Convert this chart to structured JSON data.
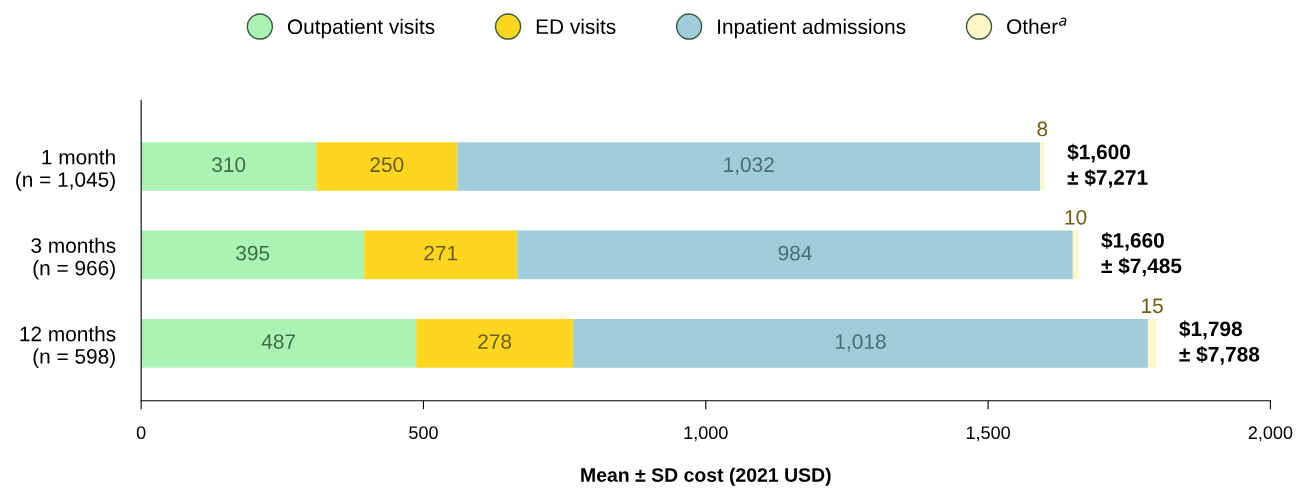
{
  "chart_data": {
    "type": "bar",
    "orientation": "horizontal",
    "stacked": true,
    "categories": [
      "1 month\n(n = 1,045)",
      "3 months\n(n = 966)",
      "12 months\n(n = 598)"
    ],
    "series": [
      {
        "name": "Outpatient visits",
        "color": "#abf2b5",
        "values": [
          310,
          395,
          487
        ],
        "value_labels": [
          "310",
          "395",
          "487"
        ]
      },
      {
        "name": "ED visits",
        "color": "#fdd620",
        "values": [
          250,
          271,
          278
        ],
        "value_labels": [
          "250",
          "271",
          "278"
        ]
      },
      {
        "name": "Inpatient admissions",
        "color": "#a0cdd9",
        "values": [
          1032,
          984,
          1018
        ],
        "value_labels": [
          "1,032",
          "984",
          "1,018"
        ]
      },
      {
        "name": "Other$^{a}$",
        "color": "#fdf6c8",
        "values": [
          8,
          10,
          15
        ],
        "value_labels": [
          "8",
          "10",
          "15"
        ]
      }
    ],
    "totals": [
      "$1,600\n± $7,271",
      "$1,660\n± $7,485",
      "$1,798\n± $7,788"
    ],
    "xlabel": "Mean ± SD cost (2021 USD)",
    "xlim": [
      0,
      2000
    ],
    "xticks": [
      0,
      500,
      {
        "value": 1000,
        "label": "1,000"
      },
      {
        "value": 1500,
        "label": "1,500"
      },
      {
        "value": 2000,
        "label": "2,000"
      }
    ],
    "grid": false,
    "legend": "top"
  }
}
